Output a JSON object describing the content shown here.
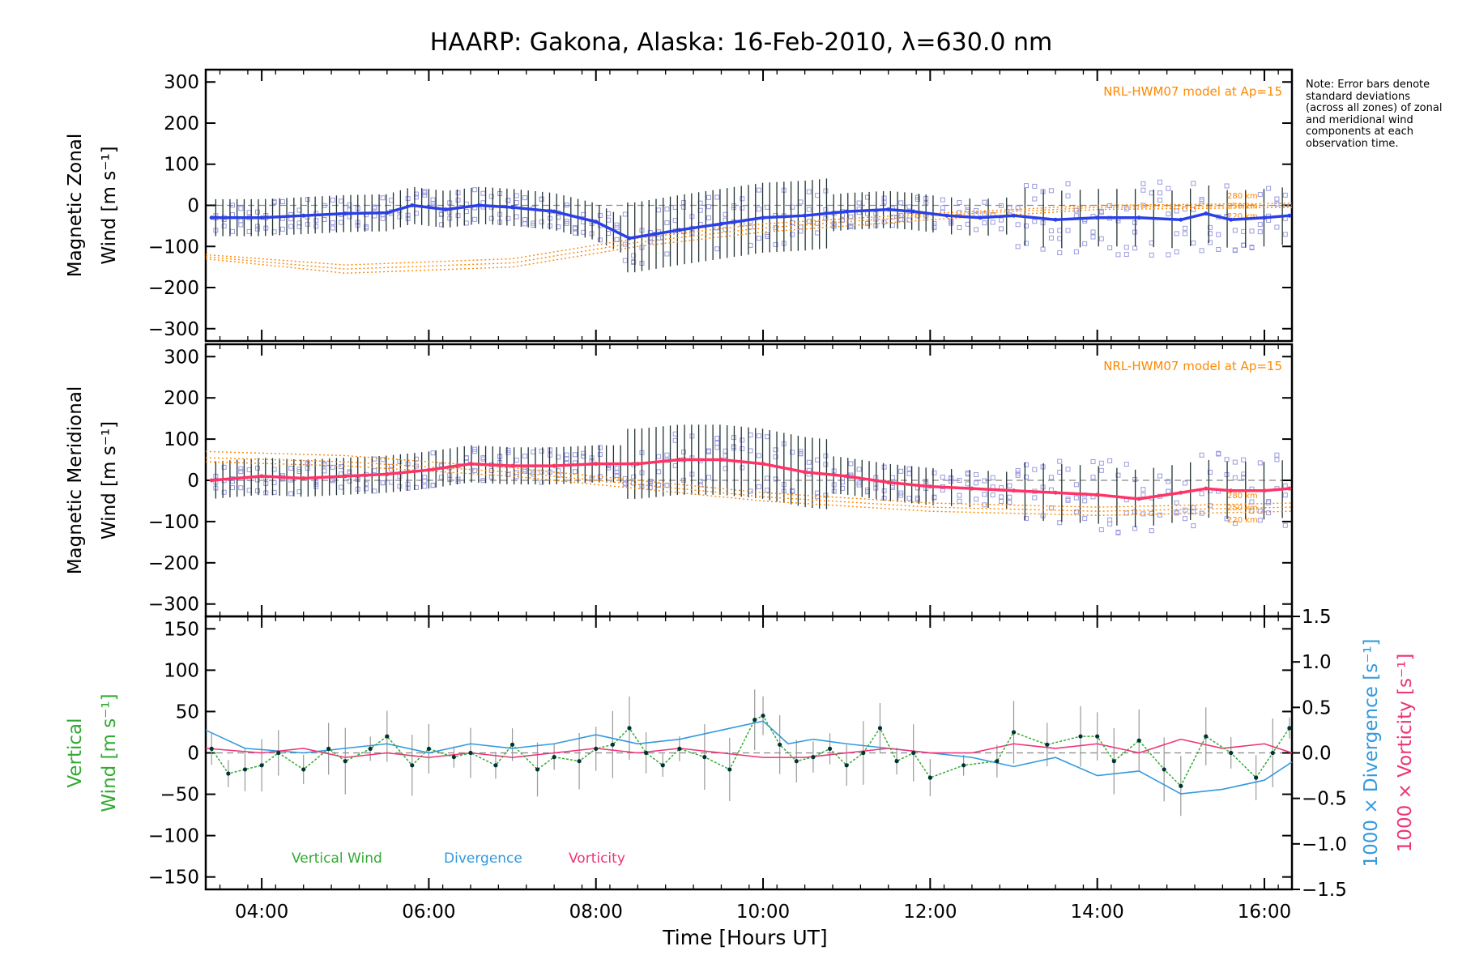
{
  "title": "HAARP: Gakona,  Alaska: 16-Feb-2010, λ=630.0 nm",
  "note": "Note: Error bars denote standard deviations (across all zones) of zonal and meridional wind components at each observation time.",
  "xlabel": "Time [Hours UT]",
  "colors": {
    "zonal": "#2a3fe8",
    "meridional": "#ff3366",
    "vertical": "#33aa33",
    "divergence": "#3399dd",
    "vorticity": "#ee3377",
    "model": "#ff8800",
    "points": "#9a9ae0",
    "errorbar": "#223333",
    "zero_line": "#888888"
  },
  "chart_data": [
    {
      "type": "line",
      "panel": "zonal",
      "ylabel": "Magnetic Zonal Wind [m s⁻¹]",
      "xlim": [
        3.33,
        16.33
      ],
      "ylim": [
        -330,
        330
      ],
      "yticks": [
        300,
        200,
        100,
        0,
        -100,
        -200,
        -300
      ],
      "xticks": [
        "04:00",
        "06:00",
        "08:00",
        "10:00",
        "12:00",
        "14:00",
        "16:00"
      ],
      "model_label": "NRL-HWM07 model at Ap=15",
      "model_heights": [
        "280 km",
        "250 km",
        "220 km"
      ],
      "series": [
        {
          "x": [
            3.4,
            4.0,
            4.5,
            5.0,
            5.5,
            5.8,
            6.2,
            6.6,
            7.0,
            7.5,
            8.0,
            8.4,
            8.7,
            9.0,
            9.5,
            10.0,
            10.5,
            11.0,
            11.5,
            11.8,
            12.2,
            12.6,
            13.0,
            13.5,
            14.0,
            14.5,
            15.0,
            15.3,
            15.6,
            16.0,
            16.3
          ],
          "y": [
            -30,
            -30,
            -25,
            -20,
            -18,
            0,
            -10,
            0,
            -5,
            -15,
            -40,
            -80,
            -70,
            -60,
            -45,
            -30,
            -25,
            -15,
            -10,
            -15,
            -25,
            -30,
            -25,
            -35,
            -30,
            -30,
            -35,
            -20,
            -35,
            -30,
            -25
          ]
        },
        {
          "name": "280 km",
          "x": [
            3.33,
            5,
            7,
            8.5,
            10,
            12,
            14,
            16.33
          ],
          "y": [
            -120,
            -145,
            -130,
            -80,
            -45,
            -20,
            0,
            5
          ]
        },
        {
          "name": "250 km",
          "x": [
            3.33,
            5,
            7,
            8.5,
            10,
            12,
            14,
            16.33
          ],
          "y": [
            -125,
            -155,
            -140,
            -90,
            -55,
            -25,
            -5,
            0
          ]
        },
        {
          "name": "220 km",
          "x": [
            3.33,
            5,
            7,
            8.5,
            10,
            12,
            14,
            16.33
          ],
          "y": [
            -130,
            -165,
            -150,
            -100,
            -65,
            -35,
            -10,
            -5
          ]
        }
      ]
    },
    {
      "type": "line",
      "panel": "meridional",
      "ylabel": "Magnetic Meridional Wind [m s⁻¹]",
      "xlim": [
        3.33,
        16.33
      ],
      "ylim": [
        -330,
        330
      ],
      "yticks": [
        300,
        200,
        100,
        0,
        -100,
        -200,
        -300
      ],
      "xticks": [
        "04:00",
        "06:00",
        "08:00",
        "10:00",
        "12:00",
        "14:00",
        "16:00"
      ],
      "model_label": "NRL-HWM07 model at Ap=15",
      "model_heights": [
        "280 km",
        "250 km",
        "220 km"
      ],
      "series": [
        {
          "x": [
            3.4,
            4.0,
            4.5,
            5.0,
            5.5,
            6.0,
            6.5,
            7.0,
            7.5,
            8.0,
            8.5,
            9.0,
            9.5,
            10.0,
            10.5,
            11.0,
            11.5,
            12.0,
            12.5,
            13.0,
            13.5,
            14.0,
            14.5,
            15.0,
            15.3,
            15.6,
            16.0,
            16.3
          ],
          "y": [
            0,
            10,
            5,
            10,
            15,
            25,
            40,
            35,
            35,
            40,
            40,
            50,
            50,
            40,
            20,
            10,
            -5,
            -15,
            -20,
            -25,
            -30,
            -35,
            -45,
            -30,
            -20,
            -25,
            -25,
            -20
          ]
        },
        {
          "name": "280 km",
          "x": [
            3.33,
            5,
            7,
            8.5,
            10,
            12,
            14,
            16.33
          ],
          "y": [
            70,
            60,
            30,
            0,
            -30,
            -55,
            -65,
            -55
          ]
        },
        {
          "name": "250 km",
          "x": [
            3.33,
            5,
            7,
            8.5,
            10,
            12,
            14,
            16.33
          ],
          "y": [
            55,
            45,
            20,
            -10,
            -40,
            -65,
            -75,
            -65
          ]
        },
        {
          "name": "220 km",
          "x": [
            3.33,
            5,
            7,
            8.5,
            10,
            12,
            14,
            16.33
          ],
          "y": [
            45,
            35,
            10,
            -20,
            -50,
            -75,
            -85,
            -75
          ]
        }
      ]
    },
    {
      "type": "line",
      "panel": "vertical",
      "ylabel": "Vertical Wind [m s⁻¹]",
      "y2label_divergence": "1000 × Divergence [s⁻¹]",
      "y2label_vorticity": "1000 × Vorticity [s⁻¹]",
      "xlim": [
        3.33,
        16.33
      ],
      "ylim": [
        -165,
        165
      ],
      "y2lim": [
        -1.5,
        1.5
      ],
      "yticks": [
        150,
        100,
        50,
        0,
        -50,
        -100,
        -150
      ],
      "y2ticks": [
        "1.5",
        "1.0",
        "0.5",
        "0.0",
        "−0.5",
        "−1.0",
        "−1.5"
      ],
      "xticks": [
        "04:00",
        "06:00",
        "08:00",
        "10:00",
        "12:00",
        "14:00",
        "16:00"
      ],
      "legend": [
        "Vertical Wind",
        "Divergence",
        "Vorticity"
      ],
      "series": [
        {
          "name": "Vertical Wind",
          "x": [
            3.4,
            3.6,
            3.8,
            4.0,
            4.2,
            4.5,
            4.8,
            5.0,
            5.3,
            5.5,
            5.8,
            6.0,
            6.3,
            6.5,
            6.8,
            7.0,
            7.3,
            7.5,
            7.8,
            8.0,
            8.2,
            8.4,
            8.6,
            8.8,
            9.0,
            9.3,
            9.6,
            9.9,
            10.0,
            10.2,
            10.4,
            10.6,
            10.8,
            11.0,
            11.2,
            11.4,
            11.6,
            11.8,
            12.0,
            12.4,
            12.8,
            13.0,
            13.4,
            13.8,
            14.0,
            14.2,
            14.5,
            14.8,
            15.0,
            15.3,
            15.6,
            15.9,
            16.1,
            16.3
          ],
          "y": [
            5,
            -25,
            -20,
            -15,
            0,
            -20,
            5,
            -10,
            5,
            20,
            -15,
            5,
            -5,
            0,
            -15,
            10,
            -20,
            -5,
            -10,
            5,
            10,
            30,
            0,
            -15,
            5,
            -5,
            -20,
            40,
            45,
            10,
            -10,
            -5,
            5,
            -15,
            0,
            30,
            -10,
            0,
            -30,
            -15,
            -10,
            25,
            10,
            20,
            20,
            -10,
            15,
            -20,
            -40,
            20,
            0,
            -30,
            0,
            30
          ]
        },
        {
          "name": "Divergence",
          "x": [
            3.33,
            3.8,
            4.5,
            5.0,
            5.5,
            6.0,
            6.5,
            7.0,
            7.5,
            8.0,
            8.5,
            9.0,
            9.5,
            10.0,
            10.3,
            10.6,
            11.0,
            11.5,
            12.0,
            12.5,
            13.0,
            13.5,
            14.0,
            14.5,
            15.0,
            15.5,
            16.0,
            16.33
          ],
          "y": [
            0.25,
            0.05,
            0.0,
            0.05,
            0.1,
            0.0,
            0.1,
            0.05,
            0.1,
            0.2,
            0.1,
            0.15,
            0.25,
            0.35,
            0.1,
            0.15,
            0.1,
            0.05,
            0.0,
            -0.05,
            -0.15,
            -0.05,
            -0.25,
            -0.2,
            -0.45,
            -0.4,
            -0.3,
            -0.1
          ]
        },
        {
          "name": "Vorticity",
          "x": [
            3.33,
            4.0,
            4.5,
            5.0,
            5.5,
            6.0,
            6.5,
            7.0,
            7.5,
            8.0,
            8.5,
            9.0,
            9.5,
            10.0,
            10.5,
            11.0,
            11.5,
            12.0,
            12.5,
            13.0,
            13.5,
            14.0,
            14.5,
            15.0,
            15.5,
            16.0,
            16.33
          ],
          "y": [
            0.05,
            0.0,
            0.05,
            -0.05,
            0.0,
            -0.05,
            0.0,
            -0.05,
            0.0,
            0.05,
            0.0,
            0.05,
            0.0,
            -0.05,
            -0.05,
            0.0,
            0.05,
            0.0,
            0.0,
            0.1,
            0.05,
            0.1,
            0.0,
            0.15,
            0.05,
            0.1,
            0.0
          ]
        }
      ]
    }
  ]
}
